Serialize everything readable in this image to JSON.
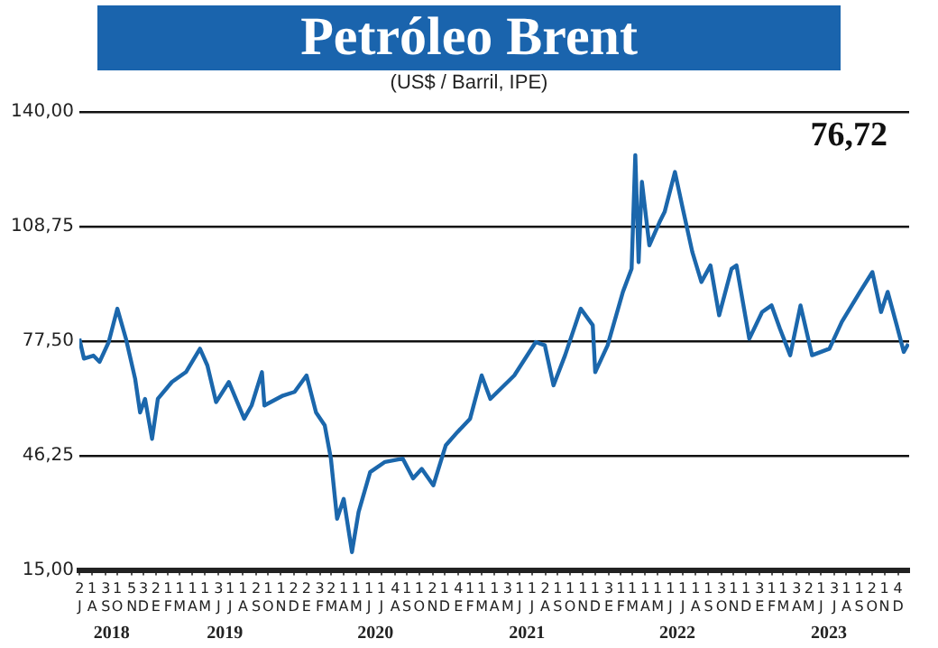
{
  "chart_data": {
    "type": "line",
    "title": "Petróleo Brent",
    "subtitle": "(US$ / Barril, IPE)",
    "color": "#1b67ac",
    "grid": "y",
    "annotations": [
      "76,72",
      "2018",
      "2019",
      "2020",
      "2021",
      "2022",
      "2023"
    ],
    "xlim": [
      "2018-07-01",
      "2023-12-31"
    ],
    "ylim": [
      15,
      140
    ],
    "yticks": [
      {
        "value": 15,
        "label": "15,00"
      },
      {
        "value": 46.25,
        "label": "46,25"
      },
      {
        "value": 77.5,
        "label": "77,50"
      },
      {
        "value": 108.75,
        "label": "108,75"
      },
      {
        "value": 140,
        "label": "140,00"
      }
    ],
    "xticks": [
      {
        "value": "2018-07-02",
        "label": "2\nJ"
      },
      {
        "value": "2018-08-01",
        "label": "1\nA"
      },
      {
        "value": "2018-09-03",
        "label": "3\nS"
      },
      {
        "value": "2018-10-01",
        "label": "1\nO"
      },
      {
        "value": "2018-11-05",
        "label": "5\nN"
      },
      {
        "value": "2018-12-03",
        "label": "3\nD"
      },
      {
        "value": "2019-01-02",
        "label": "2\nE"
      },
      {
        "value": "2019-02-01",
        "label": "1\nF"
      },
      {
        "value": "2019-03-01",
        "label": "1\nM"
      },
      {
        "value": "2019-04-01",
        "label": "1\nA"
      },
      {
        "value": "2019-05-01",
        "label": "1\nM"
      },
      {
        "value": "2019-06-03",
        "label": "3\nJ"
      },
      {
        "value": "2019-07-01",
        "label": "1\nJ"
      },
      {
        "value": "2019-08-01",
        "label": "1\nA"
      },
      {
        "value": "2019-09-02",
        "label": "2\nS"
      },
      {
        "value": "2019-10-01",
        "label": "1\nO"
      },
      {
        "value": "2019-11-01",
        "label": "1\nN"
      },
      {
        "value": "2019-12-02",
        "label": "2\nD"
      },
      {
        "value": "2020-01-02",
        "label": "2\nE"
      },
      {
        "value": "2020-02-03",
        "label": "3\nF"
      },
      {
        "value": "2020-03-02",
        "label": "2\nM"
      },
      {
        "value": "2020-04-01",
        "label": "1\nA"
      },
      {
        "value": "2020-05-01",
        "label": "1\nM"
      },
      {
        "value": "2020-06-01",
        "label": "1\nJ"
      },
      {
        "value": "2020-07-01",
        "label": "1\nJ"
      },
      {
        "value": "2020-08-04",
        "label": "4\nA"
      },
      {
        "value": "2020-09-01",
        "label": "1\nS"
      },
      {
        "value": "2020-10-01",
        "label": "1\nO"
      },
      {
        "value": "2020-11-02",
        "label": "2\nN"
      },
      {
        "value": "2020-12-01",
        "label": "1\nD"
      },
      {
        "value": "2021-01-04",
        "label": "4\nE"
      },
      {
        "value": "2021-02-01",
        "label": "1\nF"
      },
      {
        "value": "2021-03-01",
        "label": "1\nM"
      },
      {
        "value": "2021-04-01",
        "label": "1\nA"
      },
      {
        "value": "2021-05-03",
        "label": "3\nM"
      },
      {
        "value": "2021-06-01",
        "label": "1\nJ"
      },
      {
        "value": "2021-07-01",
        "label": "1\nJ"
      },
      {
        "value": "2021-08-02",
        "label": "2\nA"
      },
      {
        "value": "2021-09-01",
        "label": "1\nS"
      },
      {
        "value": "2021-10-01",
        "label": "1\nO"
      },
      {
        "value": "2021-11-01",
        "label": "1\nN"
      },
      {
        "value": "2021-12-01",
        "label": "1\nD"
      },
      {
        "value": "2022-01-03",
        "label": "3\nE"
      },
      {
        "value": "2022-02-01",
        "label": "1\nF"
      },
      {
        "value": "2022-03-01",
        "label": "1\nM"
      },
      {
        "value": "2022-04-01",
        "label": "1\nA"
      },
      {
        "value": "2022-05-01",
        "label": "1\nM"
      },
      {
        "value": "2022-06-01",
        "label": "1\nJ"
      },
      {
        "value": "2022-07-01",
        "label": "1\nJ"
      },
      {
        "value": "2022-08-01",
        "label": "1\nA"
      },
      {
        "value": "2022-09-01",
        "label": "1\nS"
      },
      {
        "value": "2022-10-03",
        "label": "3\nO"
      },
      {
        "value": "2022-11-01",
        "label": "1\nN"
      },
      {
        "value": "2022-12-01",
        "label": "1\nD"
      },
      {
        "value": "2023-01-03",
        "label": "3\nE"
      },
      {
        "value": "2023-02-01",
        "label": "1\nF"
      },
      {
        "value": "2023-03-01",
        "label": "1\nM"
      },
      {
        "value": "2023-04-03",
        "label": "3\nA"
      },
      {
        "value": "2023-05-02",
        "label": "2\nM"
      },
      {
        "value": "2023-06-01",
        "label": "1\nJ"
      },
      {
        "value": "2023-07-03",
        "label": "3\nJ"
      },
      {
        "value": "2023-08-01",
        "label": "1\nA"
      },
      {
        "value": "2023-09-01",
        "label": "1\nS"
      },
      {
        "value": "2023-10-02",
        "label": "2\nO"
      },
      {
        "value": "2023-11-01",
        "label": "1\nN"
      },
      {
        "value": "2023-12-04",
        "label": "4\nD"
      }
    ],
    "x": [
      "2018-07-01",
      "2018-07-12",
      "2018-08-04",
      "2018-08-19",
      "2018-09-10",
      "2018-10-01",
      "2018-10-22",
      "2018-11-13",
      "2018-11-25",
      "2018-12-07",
      "2018-12-24",
      "2019-01-07",
      "2019-02-10",
      "2019-03-16",
      "2019-04-19",
      "2019-05-07",
      "2019-05-28",
      "2019-06-28",
      "2019-08-04",
      "2019-08-22",
      "2019-09-16",
      "2019-09-22",
      "2019-11-06",
      "2019-12-04",
      "2020-01-02",
      "2020-01-25",
      "2020-02-15",
      "2020-03-01",
      "2020-03-16",
      "2020-04-01",
      "2020-04-21",
      "2020-05-07",
      "2020-06-04",
      "2020-07-10",
      "2020-08-22",
      "2020-09-16",
      "2020-10-07",
      "2020-11-04",
      "2020-12-04",
      "2021-01-01",
      "2021-02-01",
      "2021-03-01",
      "2021-03-22",
      "2021-05-19",
      "2021-07-10",
      "2021-08-01",
      "2021-08-22",
      "2021-09-19",
      "2021-10-27",
      "2021-11-25",
      "2021-12-01",
      "2021-12-31",
      "2022-02-06",
      "2022-02-27",
      "2022-03-08",
      "2022-03-16",
      "2022-03-24",
      "2022-04-11",
      "2022-05-06",
      "2022-05-18",
      "2022-06-12",
      "2022-07-01",
      "2022-07-24",
      "2022-08-15",
      "2022-09-06",
      "2022-09-27",
      "2022-10-27",
      "2022-11-08",
      "2022-12-09",
      "2023-01-09",
      "2023-02-01",
      "2023-02-21",
      "2023-03-18",
      "2023-04-12",
      "2023-05-10",
      "2023-06-21",
      "2023-07-21",
      "2023-09-03",
      "2023-10-03",
      "2023-10-24",
      "2023-11-09",
      "2023-12-01",
      "2023-12-18",
      "2023-12-29"
    ],
    "values": [
      78.1,
      72.7,
      73.5,
      71.8,
      77.2,
      86.3,
      78,
      67.2,
      58,
      61.7,
      50.8,
      61.7,
      66.3,
      69,
      75.4,
      70.8,
      60.8,
      66.3,
      56.3,
      59.9,
      69,
      59.9,
      62.6,
      63.6,
      68.1,
      58,
      54.5,
      45.4,
      29,
      34.4,
      19.9,
      30.8,
      41.7,
      44.5,
      45.4,
      40,
      42.6,
      38.1,
      49,
      52.6,
      56.3,
      68.1,
      61.7,
      68.1,
      77.2,
      76.3,
      65.4,
      73.6,
      86.3,
      81.8,
      69,
      76.3,
      90.9,
      97.2,
      128.2,
      99,
      120.9,
      103.6,
      110,
      112.7,
      123.6,
      113.6,
      101.8,
      93.6,
      98.1,
      84.5,
      97.2,
      98.1,
      78.1,
      85.4,
      87.2,
      80.9,
      73.6,
      87.2,
      73.6,
      75.4,
      82.7,
      90.9,
      96.3,
      85.4,
      90.9,
      81.8,
      74.5,
      76.72
    ]
  }
}
